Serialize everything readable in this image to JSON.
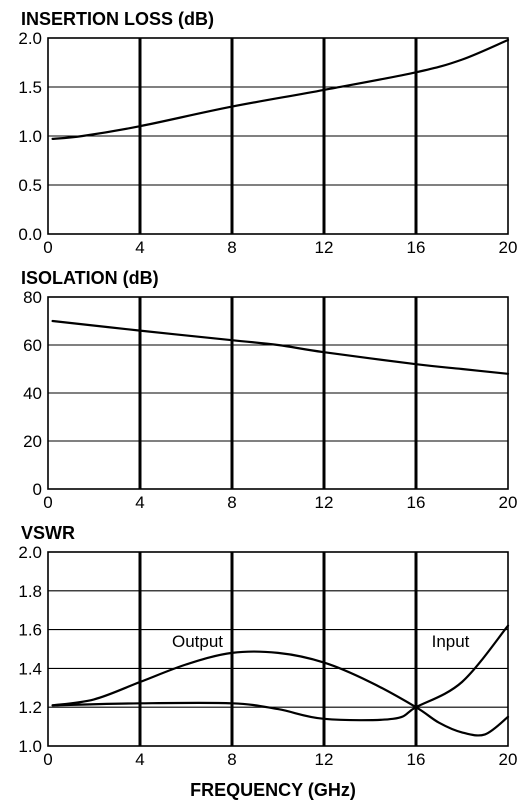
{
  "xlabel": "FREQUENCY (GHz)",
  "chart_data": [
    {
      "type": "line",
      "title": "INSERTION LOSS (dB)",
      "xlim": [
        0,
        20
      ],
      "ylim": [
        0,
        2
      ],
      "x_ticks": [
        "0",
        "4",
        "8",
        "12",
        "16",
        "20"
      ],
      "y_ticks": [
        "0.0",
        "0.5",
        "1.0",
        "1.5",
        "2.0"
      ],
      "grid": true,
      "series": [
        {
          "name": "",
          "x": [
            0.2,
            1.5,
            4,
            8,
            12,
            16,
            18,
            20
          ],
          "values": [
            0.97,
            1.0,
            1.1,
            1.3,
            1.47,
            1.65,
            1.78,
            1.98
          ]
        }
      ]
    },
    {
      "type": "line",
      "title": "ISOLATION (dB)",
      "xlim": [
        0,
        20
      ],
      "ylim": [
        0,
        80
      ],
      "x_ticks": [
        "0",
        "4",
        "8",
        "12",
        "16",
        "20"
      ],
      "y_ticks": [
        "0",
        "20",
        "40",
        "60",
        "80"
      ],
      "grid": true,
      "series": [
        {
          "name": "",
          "x": [
            0.2,
            4,
            8,
            10,
            12,
            16,
            18,
            20
          ],
          "values": [
            70,
            66,
            62,
            60,
            57,
            52,
            50,
            48
          ]
        }
      ]
    },
    {
      "type": "line",
      "title": "VSWR",
      "xlim": [
        0,
        20
      ],
      "ylim": [
        1.0,
        2.0
      ],
      "x_ticks": [
        "0",
        "4",
        "8",
        "12",
        "16",
        "20"
      ],
      "y_ticks": [
        "1.0",
        "1.2",
        "1.4",
        "1.6",
        "1.8",
        "2.0"
      ],
      "grid": true,
      "annotations": [
        "Output",
        "Input"
      ],
      "series": [
        {
          "name": "Output",
          "x": [
            0.2,
            2,
            4,
            6,
            8,
            10,
            12,
            14,
            16,
            17,
            18,
            19,
            20
          ],
          "values": [
            1.21,
            1.24,
            1.33,
            1.42,
            1.48,
            1.48,
            1.43,
            1.33,
            1.2,
            1.12,
            1.07,
            1.06,
            1.15
          ]
        },
        {
          "name": "Input",
          "x": [
            0.2,
            4,
            8,
            10,
            12,
            15,
            16,
            18,
            20
          ],
          "values": [
            1.21,
            1.22,
            1.22,
            1.19,
            1.14,
            1.14,
            1.2,
            1.33,
            1.62
          ]
        }
      ]
    }
  ]
}
